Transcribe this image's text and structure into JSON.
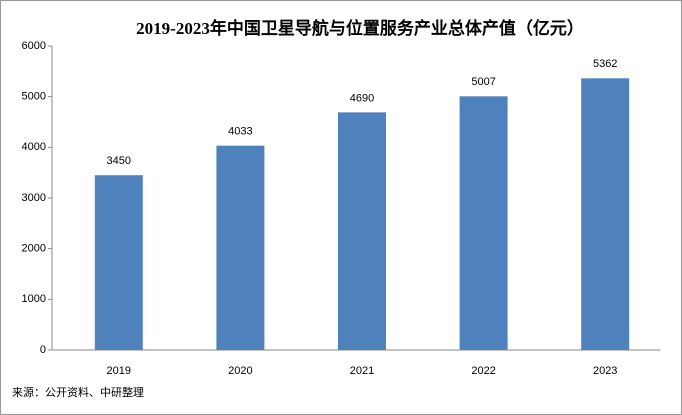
{
  "chart_data": {
    "type": "bar",
    "title": "2019-2023年中国卫星导航与位置服务产业总体产值（亿元）",
    "categories": [
      "2019",
      "2020",
      "2021",
      "2022",
      "2023"
    ],
    "values": [
      3450,
      4033,
      4690,
      5007,
      5362
    ],
    "color": "#4f81bd",
    "ylim": [
      0,
      6000
    ],
    "yticks": [
      0,
      1000,
      2000,
      3000,
      4000,
      5000,
      6000
    ],
    "grid": false,
    "source": "来源：公开资料、中研整理"
  }
}
